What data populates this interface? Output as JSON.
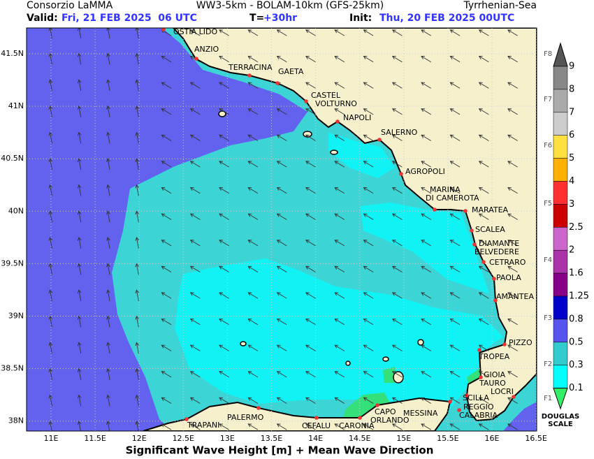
{
  "header": {
    "org": "Consorzio LaMMA",
    "model": "WW3-5km - BOLAM-10km (GFS-25km)",
    "region": "Tyrrhenian-Sea",
    "valid_label": "Valid:",
    "valid": "Fri, 21 FEB 2025  06 UTC",
    "t_label": "T=",
    "t": "+30hr",
    "init_label": "Init:",
    "init": "Thu, 20 FEB 2025 00UTC"
  },
  "map": {
    "lat_labels": [
      "41.5N",
      "41N",
      "40.5N",
      "40N",
      "39.5N",
      "39N",
      "38.5N",
      "38N"
    ],
    "lon_labels": [
      "11E",
      "11.5E",
      "12E",
      "12.5E",
      "13E",
      "13.5E",
      "14E",
      "14.5E",
      "15E",
      "15.5E",
      "16E",
      "16.5E"
    ],
    "places": [
      {
        "lines": [
          "OSTIA LIDO"
        ]
      },
      {
        "lines": [
          "ANZIO"
        ]
      },
      {
        "lines": [
          "TERRACINA"
        ]
      },
      {
        "lines": [
          "GAETA"
        ]
      },
      {
        "lines": [
          "CASTEL",
          "VOLTURNO"
        ]
      },
      {
        "lines": [
          "NAPOLI"
        ]
      },
      {
        "lines": [
          "SALERNO"
        ]
      },
      {
        "lines": [
          "AGROPOLI"
        ]
      },
      {
        "lines": [
          "MARINA",
          "DI CAMEROTA"
        ]
      },
      {
        "lines": [
          "MARATEA"
        ]
      },
      {
        "lines": [
          "SCALEA"
        ]
      },
      {
        "lines": [
          "DIAMANTE",
          "BELVEDERE"
        ]
      },
      {
        "lines": [
          "CETRARO"
        ]
      },
      {
        "lines": [
          "PAOLA"
        ]
      },
      {
        "lines": [
          "AMANTEA"
        ]
      },
      {
        "lines": [
          "PIZZO"
        ]
      },
      {
        "lines": [
          "TROPEA"
        ]
      },
      {
        "lines": [
          "GIOIA",
          "TAURO"
        ]
      },
      {
        "lines": [
          "LOCRI"
        ]
      },
      {
        "lines": [
          "SCILLA"
        ]
      },
      {
        "lines": [
          "REGGIO",
          "CALABRIA"
        ]
      },
      {
        "lines": [
          "MESSINA"
        ]
      },
      {
        "lines": [
          "CAPO",
          "ORLANDO"
        ]
      },
      {
        "lines": [
          "CARONIA"
        ]
      },
      {
        "lines": [
          "CEFALU"
        ]
      },
      {
        "lines": [
          "PALERMO"
        ]
      },
      {
        "lines": [
          "TRAPANI"
        ]
      }
    ]
  },
  "scale": {
    "levels": [
      9,
      8,
      7,
      6,
      5,
      4,
      3,
      2.5,
      2,
      1.6,
      1.25,
      0.8,
      0.5,
      0.3,
      0.1
    ],
    "douglas": [
      "F8",
      "F7",
      "F6",
      "F5",
      "F4",
      "F3",
      "F2",
      "F1"
    ],
    "title_lines": [
      "DOUGLAS",
      "SCALE"
    ]
  },
  "footer": {
    "title": "Significant Wave Height [m] + Mean Wave Direction"
  }
}
